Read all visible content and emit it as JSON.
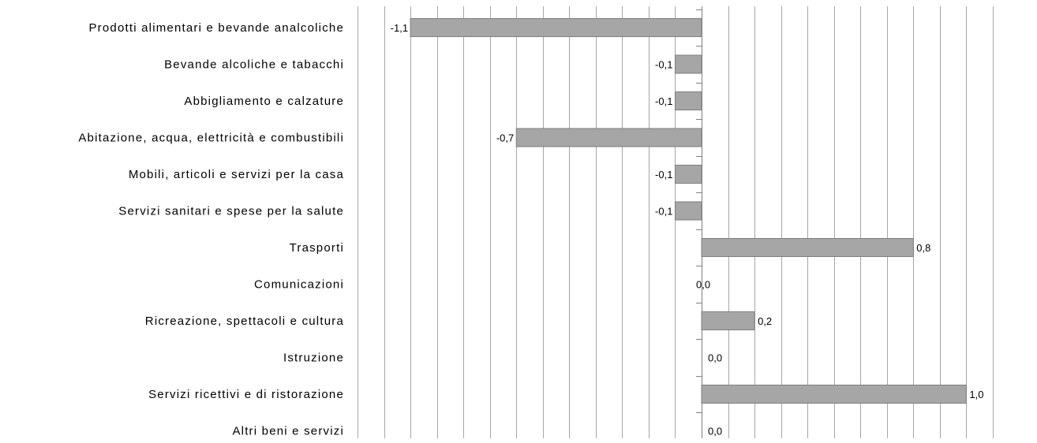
{
  "chart_data": {
    "type": "bar",
    "orientation": "horizontal",
    "categories": [
      "Prodotti alimentari e bevande analcoliche",
      "Bevande alcoliche e tabacchi",
      "Abbigliamento e calzature",
      "Abitazione, acqua, elettricità e combustibili",
      "Mobili, articoli e servizi per la casa",
      "Servizi sanitari e spese per la salute",
      "Trasporti",
      "Comunicazioni",
      "Ricreazione, spettacoli e cultura",
      "Istruzione",
      "Servizi ricettivi e di ristorazione",
      "Altri beni e servizi"
    ],
    "values": [
      -1.1,
      -0.1,
      -0.1,
      -0.7,
      -0.1,
      -0.1,
      0.8,
      0.0,
      0.2,
      0.0,
      1.0,
      0.0
    ],
    "data_labels": [
      "-1,1",
      "-0,1",
      "-0,1",
      "-0,7",
      "-0,1",
      "-0,1",
      "0,8",
      "0,0",
      "0,2",
      "0,0",
      "1,0",
      "0,0"
    ],
    "xlim": [
      -1.3,
      1.1
    ],
    "grid_step": 0.1,
    "grid": true,
    "bar_color": "#a6a6a6",
    "bar_edge_color": "#7f7f7f",
    "grid_color": "#a6a6a6"
  }
}
